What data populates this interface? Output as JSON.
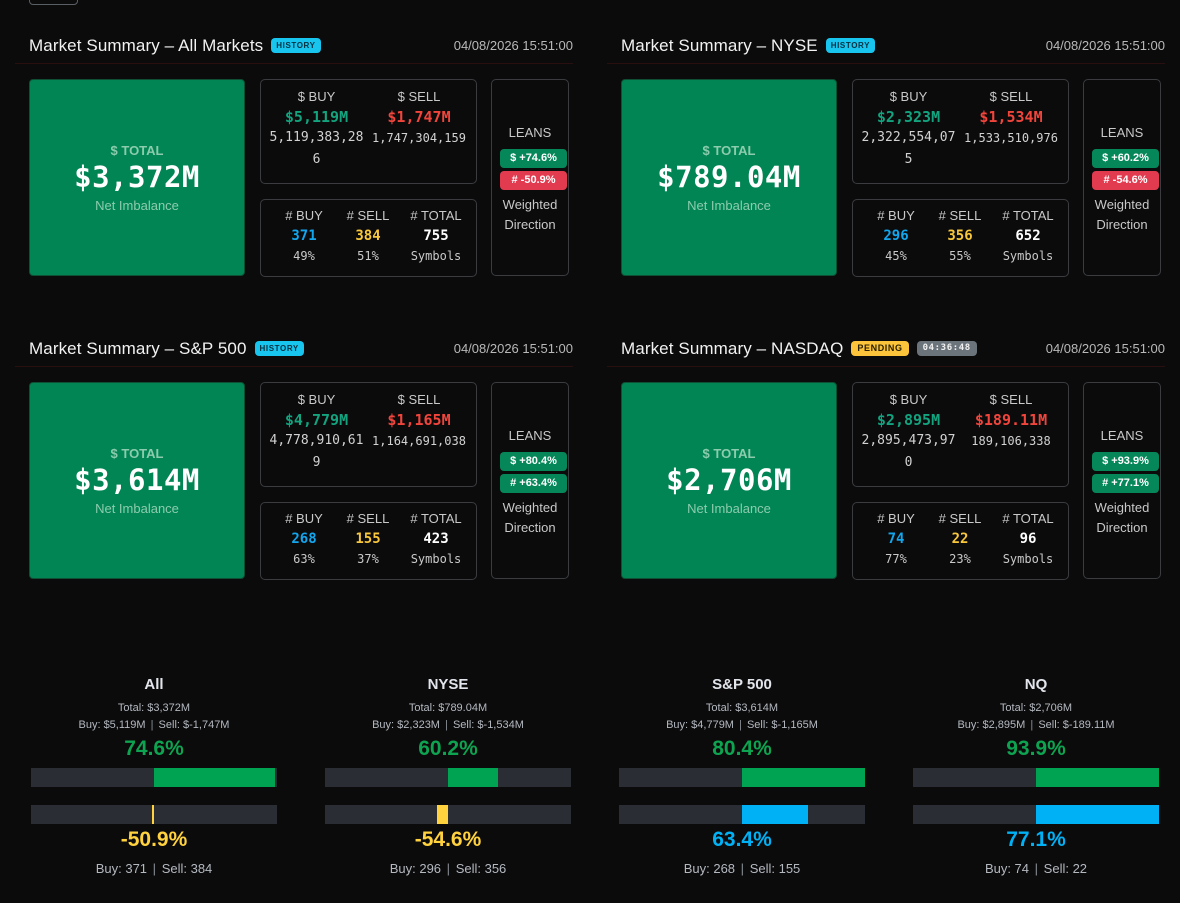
{
  "colors": {
    "buy_dollar": "#13a37e",
    "sell_dollar": "#f1453c",
    "buy_count": "#12a6ee",
    "sell_count": "#f8c73b",
    "total_box": "#018554",
    "lean_positive": "#06875a",
    "lean_negative": "#e23a4f",
    "gauge_dollar": "#00a352",
    "gauge_count_pos": "#00b2f5",
    "gauge_count_neg": "#ffd23e"
  },
  "panels": [
    {
      "title": "Market Summary – All Markets",
      "status_badge": "HISTORY",
      "timestamp": "04/08/2026 15:51:00",
      "total_label": "$ TOTAL",
      "total_value": "$3,372M",
      "total_sub": "Net Imbalance",
      "buy_label": "$ BUY",
      "buy_value": "$5,119M",
      "buy_raw": "5,119,383,286",
      "sell_label": "$ SELL",
      "sell_value": "$1,747M",
      "sell_raw": "1,747,304,159",
      "count_buy_label": "# BUY",
      "count_buy": "371",
      "count_buy_pct": "49%",
      "count_sell_label": "# SELL",
      "count_sell": "384",
      "count_sell_pct": "51%",
      "count_total_label": "# TOTAL",
      "count_total": "755",
      "count_total_sub": "Symbols",
      "leans_title": "LEANS",
      "lean_dollar": "$ +74.6%",
      "lean_dollar_sign": "pos",
      "lean_count": "# -50.9%",
      "lean_count_sign": "neg",
      "leans_sub1": "Weighted",
      "leans_sub2": "Direction"
    },
    {
      "title": "Market Summary – NYSE",
      "status_badge": "HISTORY",
      "timestamp": "04/08/2026 15:51:00",
      "total_label": "$ TOTAL",
      "total_value": "$789.04M",
      "total_sub": "Net Imbalance",
      "buy_label": "$ BUY",
      "buy_value": "$2,323M",
      "buy_raw": "2,322,554,075",
      "sell_label": "$ SELL",
      "sell_value": "$1,534M",
      "sell_raw": "1,533,510,976",
      "count_buy_label": "# BUY",
      "count_buy": "296",
      "count_buy_pct": "45%",
      "count_sell_label": "# SELL",
      "count_sell": "356",
      "count_sell_pct": "55%",
      "count_total_label": "# TOTAL",
      "count_total": "652",
      "count_total_sub": "Symbols",
      "leans_title": "LEANS",
      "lean_dollar": "$ +60.2%",
      "lean_dollar_sign": "pos",
      "lean_count": "# -54.6%",
      "lean_count_sign": "neg",
      "leans_sub1": "Weighted",
      "leans_sub2": "Direction"
    },
    {
      "title": "Market Summary – S&P 500",
      "status_badge": "HISTORY",
      "timestamp": "04/08/2026 15:51:00",
      "total_label": "$ TOTAL",
      "total_value": "$3,614M",
      "total_sub": "Net Imbalance",
      "buy_label": "$ BUY",
      "buy_value": "$4,779M",
      "buy_raw": "4,778,910,619",
      "sell_label": "$ SELL",
      "sell_value": "$1,165M",
      "sell_raw": "1,164,691,038",
      "count_buy_label": "# BUY",
      "count_buy": "268",
      "count_buy_pct": "63%",
      "count_sell_label": "# SELL",
      "count_sell": "155",
      "count_sell_pct": "37%",
      "count_total_label": "# TOTAL",
      "count_total": "423",
      "count_total_sub": "Symbols",
      "leans_title": "LEANS",
      "lean_dollar": "$ +80.4%",
      "lean_dollar_sign": "pos",
      "lean_count": "# +63.4%",
      "lean_count_sign": "pos",
      "leans_sub1": "Weighted",
      "leans_sub2": "Direction"
    },
    {
      "title": "Market Summary – NASDAQ",
      "status_badge": "PENDING",
      "timer": "04:36:48",
      "timestamp": "04/08/2026 15:51:00",
      "total_label": "$ TOTAL",
      "total_value": "$2,706M",
      "total_sub": "Net Imbalance",
      "buy_label": "$ BUY",
      "buy_value": "$2,895M",
      "buy_raw": "2,895,473,970",
      "sell_label": "$ SELL",
      "sell_value": "$189.11M",
      "sell_raw": "189,106,338",
      "count_buy_label": "# BUY",
      "count_buy": "74",
      "count_buy_pct": "77%",
      "count_sell_label": "# SELL",
      "count_sell": "22",
      "count_sell_pct": "23%",
      "count_total_label": "# TOTAL",
      "count_total": "96",
      "count_total_sub": "Symbols",
      "leans_title": "LEANS",
      "lean_dollar": "$ +93.9%",
      "lean_dollar_sign": "pos",
      "lean_count": "# +77.1%",
      "lean_count_sign": "pos",
      "leans_sub1": "Weighted",
      "leans_sub2": "Direction"
    }
  ],
  "gauges": [
    {
      "name": "All",
      "total": "Total: $3,372M",
      "buy": "Buy: $5,119M",
      "sell": "Sell: $-1,747M",
      "dollar_pct_label": "74.6%",
      "dollar_pct": 74.6,
      "count_pct_label": "-50.9%",
      "count_pct": -50.9,
      "count_buy": "Buy: 371",
      "count_sell": "Sell: 384"
    },
    {
      "name": "NYSE",
      "total": "Total: $789.04M",
      "buy": "Buy: $2,323M",
      "sell": "Sell: $-1,534M",
      "dollar_pct_label": "60.2%",
      "dollar_pct": 60.2,
      "count_pct_label": "-54.6%",
      "count_pct": -54.6,
      "count_buy": "Buy: 296",
      "count_sell": "Sell: 356"
    },
    {
      "name": "S&P 500",
      "total": "Total: $3,614M",
      "buy": "Buy: $4,779M",
      "sell": "Sell: $-1,165M",
      "dollar_pct_label": "80.4%",
      "dollar_pct": 80.4,
      "count_pct_label": "63.4%",
      "count_pct": 63.4,
      "count_buy": "Buy: 268",
      "count_sell": "Sell: 155"
    },
    {
      "name": "NQ",
      "total": "Total: $2,706M",
      "buy": "Buy: $2,895M",
      "sell": "Sell: $-189.11M",
      "dollar_pct_label": "93.9%",
      "dollar_pct": 93.9,
      "count_pct_label": "77.1%",
      "count_pct": 77.1,
      "count_buy": "Buy: 74",
      "count_sell": "Sell: 22"
    }
  ],
  "separator": "|"
}
